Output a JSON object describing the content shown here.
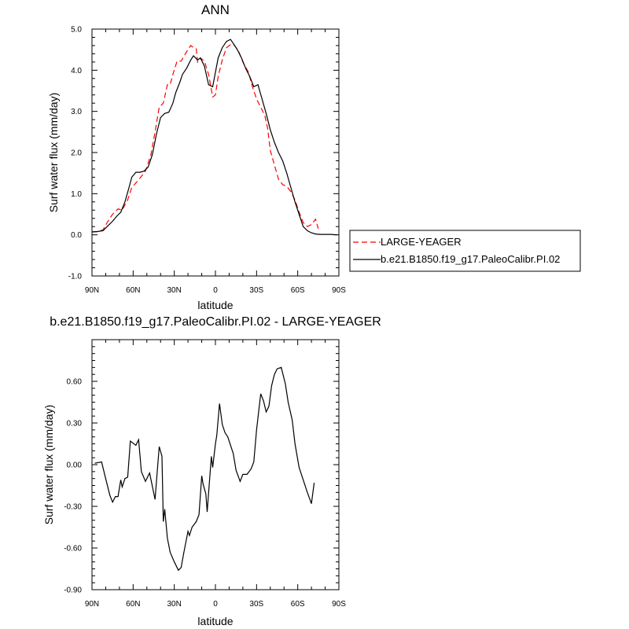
{
  "chart_data": [
    {
      "type": "line",
      "title": "ANN",
      "xlabel": "latitude",
      "ylabel": "Surf water flux (mm/day)",
      "xlim": [
        90,
        -90
      ],
      "ylim": [
        -1.0,
        5.0
      ],
      "x_ticks": [
        90,
        60,
        30,
        0,
        -30,
        -60,
        -90
      ],
      "x_tick_labels": [
        "90N",
        "60N",
        "30N",
        "0",
        "30S",
        "60S",
        "90S"
      ],
      "y_ticks": [
        -1.0,
        0.0,
        1.0,
        2.0,
        3.0,
        4.0,
        5.0
      ],
      "y_tick_labels": [
        "-1.0",
        "0.0",
        "1.0",
        "2.0",
        "3.0",
        "4.0",
        "5.0"
      ],
      "grid": false,
      "legend_position": "right, outside plot",
      "series": [
        {
          "name": "LARGE-YEAGER",
          "color": "#ff0000",
          "dash": "dashed",
          "points": [
            [
              90,
              0.07
            ],
            [
              86,
              0.08
            ],
            [
              82,
              0.12
            ],
            [
              78,
              0.35
            ],
            [
              75,
              0.5
            ],
            [
              71,
              0.63
            ],
            [
              68,
              0.6
            ],
            [
              64,
              0.85
            ],
            [
              61,
              1.15
            ],
            [
              57,
              1.3
            ],
            [
              54,
              1.42
            ],
            [
              51,
              1.55
            ],
            [
              47,
              1.95
            ],
            [
              44,
              2.5
            ],
            [
              41,
              3.1
            ],
            [
              38,
              3.2
            ],
            [
              35,
              3.65
            ],
            [
              33,
              3.65
            ],
            [
              31,
              3.9
            ],
            [
              28,
              4.22
            ],
            [
              25,
              4.22
            ],
            [
              21,
              4.45
            ],
            [
              18,
              4.6
            ],
            [
              16,
              4.55
            ],
            [
              14,
              4.52
            ],
            [
              13,
              4.2
            ],
            [
              11,
              4.3
            ],
            [
              8,
              4.22
            ],
            [
              5,
              3.9
            ],
            [
              2,
              3.35
            ],
            [
              0,
              3.4
            ],
            [
              -2,
              3.85
            ],
            [
              -5,
              4.25
            ],
            [
              -8,
              4.55
            ],
            [
              -11,
              4.62
            ],
            [
              -14,
              4.6
            ],
            [
              -17,
              4.45
            ],
            [
              -20,
              4.2
            ],
            [
              -24,
              3.95
            ],
            [
              -27,
              3.6
            ],
            [
              -30,
              3.3
            ],
            [
              -33,
              3.1
            ],
            [
              -36,
              2.9
            ],
            [
              -38,
              2.6
            ],
            [
              -40,
              2.05
            ],
            [
              -43,
              1.7
            ],
            [
              -46,
              1.35
            ],
            [
              -49,
              1.22
            ],
            [
              -52,
              1.18
            ],
            [
              -55,
              1.05
            ],
            [
              -58,
              0.85
            ],
            [
              -61,
              0.55
            ],
            [
              -64,
              0.3
            ],
            [
              -67,
              0.2
            ],
            [
              -70,
              0.25
            ],
            [
              -73,
              0.38
            ],
            [
              -75,
              0.15
            ]
          ]
        },
        {
          "name": "b.e21.B1850.f19_g17.PaleoCalibr.PI.02",
          "color": "#000000",
          "dash": "solid",
          "points": [
            [
              90,
              0.07
            ],
            [
              86,
              0.08
            ],
            [
              82,
              0.1
            ],
            [
              79,
              0.2
            ],
            [
              75,
              0.33
            ],
            [
              72,
              0.45
            ],
            [
              69,
              0.55
            ],
            [
              66,
              0.8
            ],
            [
              63,
              1.15
            ],
            [
              61,
              1.4
            ],
            [
              58,
              1.52
            ],
            [
              55,
              1.52
            ],
            [
              52,
              1.55
            ],
            [
              49,
              1.65
            ],
            [
              46,
              1.95
            ],
            [
              43,
              2.45
            ],
            [
              40,
              2.85
            ],
            [
              37,
              2.95
            ],
            [
              34,
              2.98
            ],
            [
              31,
              3.2
            ],
            [
              29,
              3.45
            ],
            [
              26,
              3.7
            ],
            [
              24,
              3.9
            ],
            [
              21,
              4.05
            ],
            [
              18,
              4.25
            ],
            [
              16,
              4.35
            ],
            [
              13,
              4.25
            ],
            [
              11,
              4.3
            ],
            [
              8,
              4.1
            ],
            [
              5,
              3.65
            ],
            [
              2,
              3.6
            ],
            [
              0,
              3.95
            ],
            [
              -2,
              4.3
            ],
            [
              -5,
              4.55
            ],
            [
              -8,
              4.7
            ],
            [
              -11,
              4.75
            ],
            [
              -13,
              4.65
            ],
            [
              -16,
              4.5
            ],
            [
              -19,
              4.3
            ],
            [
              -22,
              4.05
            ],
            [
              -25,
              3.85
            ],
            [
              -28,
              3.6
            ],
            [
              -31,
              3.65
            ],
            [
              -34,
              3.3
            ],
            [
              -37,
              2.95
            ],
            [
              -40,
              2.55
            ],
            [
              -43,
              2.25
            ],
            [
              -46,
              2.0
            ],
            [
              -49,
              1.8
            ],
            [
              -52,
              1.5
            ],
            [
              -55,
              1.15
            ],
            [
              -58,
              0.8
            ],
            [
              -61,
              0.5
            ],
            [
              -64,
              0.2
            ],
            [
              -67,
              0.1
            ],
            [
              -70,
              0.05
            ],
            [
              -73,
              0.02
            ],
            [
              -76,
              0.01
            ],
            [
              -80,
              0.01
            ],
            [
              -84,
              0.01
            ],
            [
              -89,
              0.0
            ]
          ]
        }
      ]
    },
    {
      "type": "line",
      "title": "b.e21.B1850.f19_g17.PaleoCalibr.PI.02 - LARGE-YEAGER",
      "xlabel": "latitude",
      "ylabel": "Surf water flux (mm/day)",
      "xlim": [
        90,
        -90
      ],
      "ylim": [
        -0.9,
        0.9
      ],
      "x_ticks": [
        90,
        60,
        30,
        0,
        -30,
        -60,
        -90
      ],
      "x_tick_labels": [
        "90N",
        "60N",
        "30N",
        "0",
        "30S",
        "60S",
        "90S"
      ],
      "y_ticks": [
        -0.9,
        -0.6,
        -0.3,
        0.0,
        0.3,
        0.6
      ],
      "y_tick_labels": [
        "-0.90",
        "-0.60",
        "-0.30",
        "0.00",
        "0.30",
        "0.60"
      ],
      "grid": false,
      "series": [
        {
          "name": "",
          "color": "#000000",
          "dash": "solid",
          "points": [
            [
              88,
              0.01
            ],
            [
              83,
              0.02
            ],
            [
              80,
              -0.1
            ],
            [
              77,
              -0.22
            ],
            [
              75,
              -0.27
            ],
            [
              73,
              -0.23
            ],
            [
              71,
              -0.23
            ],
            [
              69,
              -0.11
            ],
            [
              68,
              -0.16
            ],
            [
              66,
              -0.1
            ],
            [
              64,
              -0.09
            ],
            [
              62,
              0.17
            ],
            [
              58,
              0.14
            ],
            [
              56,
              0.18
            ],
            [
              54,
              -0.05
            ],
            [
              51,
              -0.12
            ],
            [
              48,
              -0.06
            ],
            [
              44,
              -0.25
            ],
            [
              41,
              0.13
            ],
            [
              39,
              0.06
            ],
            [
              38,
              -0.41
            ],
            [
              37,
              -0.32
            ],
            [
              35,
              -0.53
            ],
            [
              33,
              -0.63
            ],
            [
              30,
              -0.7
            ],
            [
              27,
              -0.76
            ],
            [
              25,
              -0.74
            ],
            [
              23,
              -0.63
            ],
            [
              20,
              -0.48
            ],
            [
              19,
              -0.51
            ],
            [
              17,
              -0.45
            ],
            [
              14,
              -0.41
            ],
            [
              12,
              -0.36
            ],
            [
              10,
              -0.08
            ],
            [
              9,
              -0.14
            ],
            [
              7,
              -0.21
            ],
            [
              6,
              -0.34
            ],
            [
              3,
              0.06
            ],
            [
              2,
              -0.02
            ],
            [
              0,
              0.15
            ],
            [
              -1,
              0.21
            ],
            [
              -3,
              0.44
            ],
            [
              -5,
              0.29
            ],
            [
              -7,
              0.23
            ],
            [
              -9,
              0.2
            ],
            [
              -11,
              0.14
            ],
            [
              -13,
              0.08
            ],
            [
              -15,
              -0.04
            ],
            [
              -18,
              -0.12
            ],
            [
              -20,
              -0.07
            ],
            [
              -23,
              -0.07
            ],
            [
              -26,
              -0.03
            ],
            [
              -28,
              0.02
            ],
            [
              -30,
              0.25
            ],
            [
              -33,
              0.51
            ],
            [
              -35,
              0.46
            ],
            [
              -37,
              0.38
            ],
            [
              -39,
              0.42
            ],
            [
              -41,
              0.57
            ],
            [
              -43,
              0.65
            ],
            [
              -45,
              0.69
            ],
            [
              -48,
              0.7
            ],
            [
              -51,
              0.58
            ],
            [
              -53,
              0.45
            ],
            [
              -56,
              0.32
            ],
            [
              -58,
              0.15
            ],
            [
              -61,
              -0.02
            ],
            [
              -63,
              -0.08
            ],
            [
              -67,
              -0.2
            ],
            [
              -70,
              -0.28
            ],
            [
              -72,
              -0.13
            ]
          ]
        }
      ]
    }
  ]
}
